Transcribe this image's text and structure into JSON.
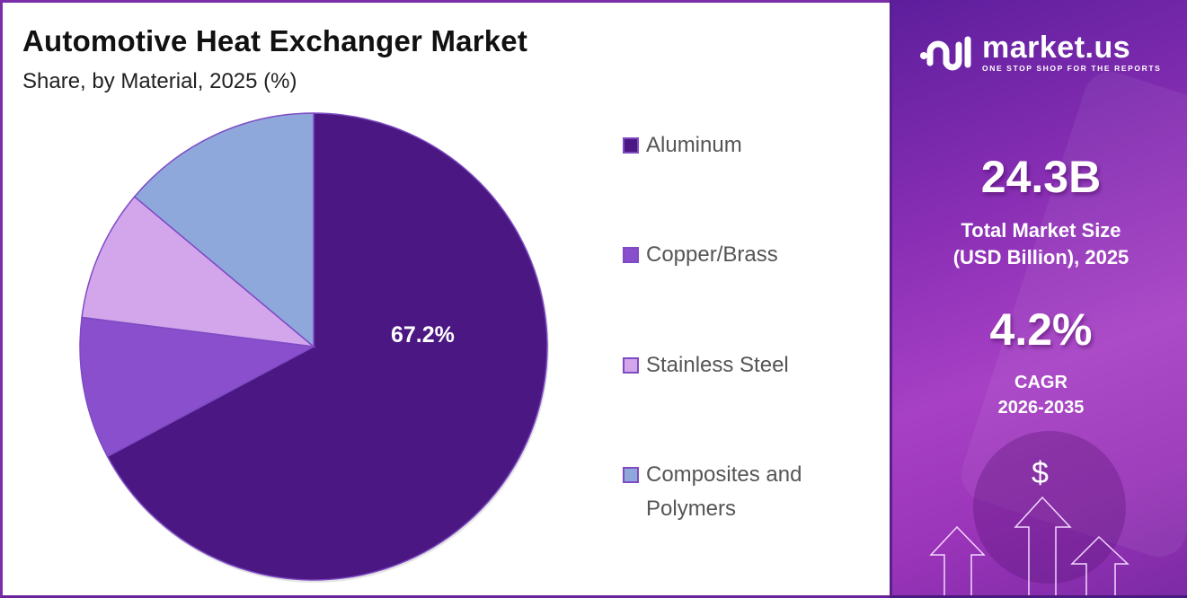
{
  "header": {
    "title": "Automotive Heat Exchanger Market",
    "subtitle": "Share, by Material, 2025 (%)"
  },
  "chart_data": {
    "type": "pie",
    "title": "Automotive Heat Exchanger Market",
    "subtitle": "Share, by Material, 2025 (%)",
    "categories": [
      "Aluminum",
      "Copper/Brass",
      "Stainless Steel",
      "Composites and Polymers"
    ],
    "values": [
      67.2,
      9.8,
      9.1,
      13.9
    ],
    "colors": [
      "#4b1782",
      "#8a4fcc",
      "#d3a6ec",
      "#8fa8dc"
    ],
    "data_labels": [
      "67.2%",
      "",
      "",
      ""
    ],
    "start_angle": "12 o'clock, clockwise",
    "legend_position": "right"
  },
  "legend": {
    "items": [
      {
        "label": "Aluminum",
        "color": "#4b1782"
      },
      {
        "label": "Copper/Brass",
        "color": "#8a4fcc"
      },
      {
        "label": "Stainless Steel",
        "color": "#d3a6ec"
      },
      {
        "label": "Composites and Polymers",
        "color": "#8fa8dc"
      }
    ]
  },
  "pie": {
    "main_label": "67.2%"
  },
  "sidebar": {
    "logo": {
      "name": "market.us",
      "tagline": "ONE STOP SHOP FOR THE REPORTS"
    },
    "market_size": {
      "value": "24.3B",
      "label_line1": "Total Market Size",
      "label_line2": "(USD Billion), 2025"
    },
    "cagr": {
      "value": "4.2%",
      "label_line1": "CAGR",
      "label_line2": "2026-2035"
    },
    "dollar_symbol": "$"
  },
  "colors": {
    "accent": "#7a2ea8",
    "panel_gradient_start": "#5d1e9c",
    "panel_gradient_end": "#a740c5"
  }
}
